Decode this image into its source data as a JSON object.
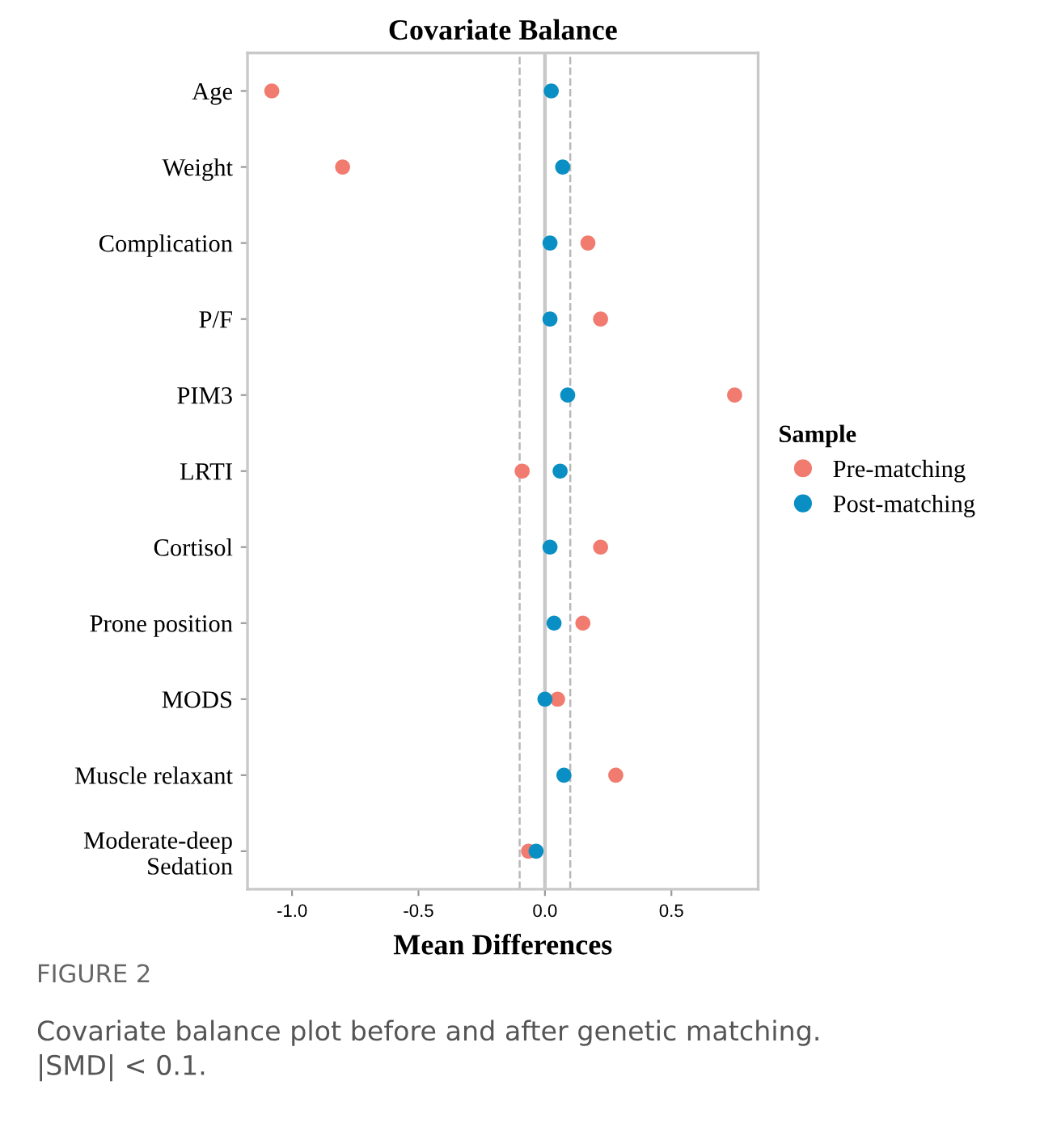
{
  "chart_data": {
    "type": "scatter",
    "title": "Covariate Balance",
    "xlabel": "Mean Differences",
    "legend_title": "Sample",
    "legend": "right",
    "orientation": "horizontal",
    "marker": "circle",
    "grid": false,
    "categories": [
      "Age",
      "Weight",
      "Complication",
      "P/F",
      "PIM3",
      "LRTI",
      "Cortisol",
      "Prone position",
      "MODS",
      "Muscle relaxant",
      "Moderate-deep\nSedation"
    ],
    "series": [
      {
        "name": "Pre-matching",
        "color": "#f07b6e",
        "values": [
          -1.08,
          -0.8,
          0.17,
          0.22,
          0.75,
          -0.09,
          0.22,
          0.15,
          0.05,
          0.28,
          -0.065
        ]
      },
      {
        "name": "Post-matching",
        "color": "#0a8fc4",
        "values": [
          0.025,
          0.07,
          0.02,
          0.02,
          0.09,
          0.06,
          0.02,
          0.036,
          0.0,
          0.075,
          -0.035
        ]
      }
    ],
    "xlim": [
      -1.176,
      0.843
    ],
    "xticks": [
      {
        "value": -1.0,
        "label": "-1.0"
      },
      {
        "value": -0.5,
        "label": "-0.5"
      },
      {
        "value": 0.0,
        "label": "0.0"
      },
      {
        "value": 0.5,
        "label": "0.5"
      }
    ],
    "ref_lines": [
      {
        "axis": "x",
        "value": 0,
        "color": "#c8c8c8",
        "line_style": "solid"
      },
      {
        "axis": "x",
        "value": -0.1,
        "color": "#b8b8b8",
        "line_style": "dashed"
      },
      {
        "axis": "x",
        "value": 0.1,
        "color": "#b8b8b8",
        "line_style": "dashed"
      }
    ],
    "annotations": [
      "FIGURE 2",
      "Covariate balance plot before and after genetic matching.\n|SMD| < 0.1."
    ]
  }
}
